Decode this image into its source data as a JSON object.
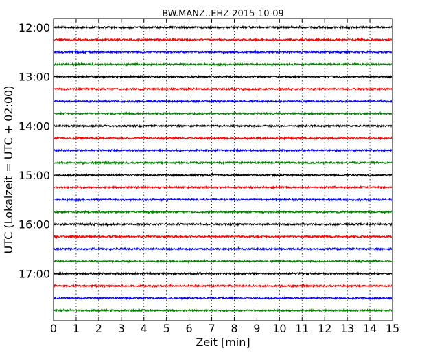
{
  "chart_data": {
    "type": "line",
    "subtype": "dayplot-seismogram",
    "title": "BW.MANZ..EHZ 2015-10-09",
    "xlabel": "Zeit  [min]",
    "ylabel": "UTC (Lokalzeit = UTC + 02:00)",
    "xlim": [
      0,
      15
    ],
    "x_ticks": [
      "0",
      "1",
      "2",
      "3",
      "4",
      "5",
      "6",
      "7",
      "8",
      "9",
      "10",
      "11",
      "12",
      "13",
      "14",
      "15"
    ],
    "y_ticks": [
      "12:00",
      "13:00",
      "14:00",
      "15:00",
      "16:00",
      "17:00"
    ],
    "grid": "vertical dotted at each minute",
    "interval_minutes": 15,
    "trace_colors": [
      "#000000",
      "#ff0000",
      "#0000ff",
      "#008000"
    ],
    "trace_start_times": [
      "12:00",
      "12:15",
      "12:30",
      "12:45",
      "13:00",
      "13:15",
      "13:30",
      "13:45",
      "14:00",
      "14:15",
      "14:30",
      "14:45",
      "15:00",
      "15:15",
      "15:30",
      "15:45",
      "16:00",
      "16:15",
      "16:30",
      "16:45",
      "17:00",
      "17:15",
      "17:30",
      "17:45"
    ]
  }
}
